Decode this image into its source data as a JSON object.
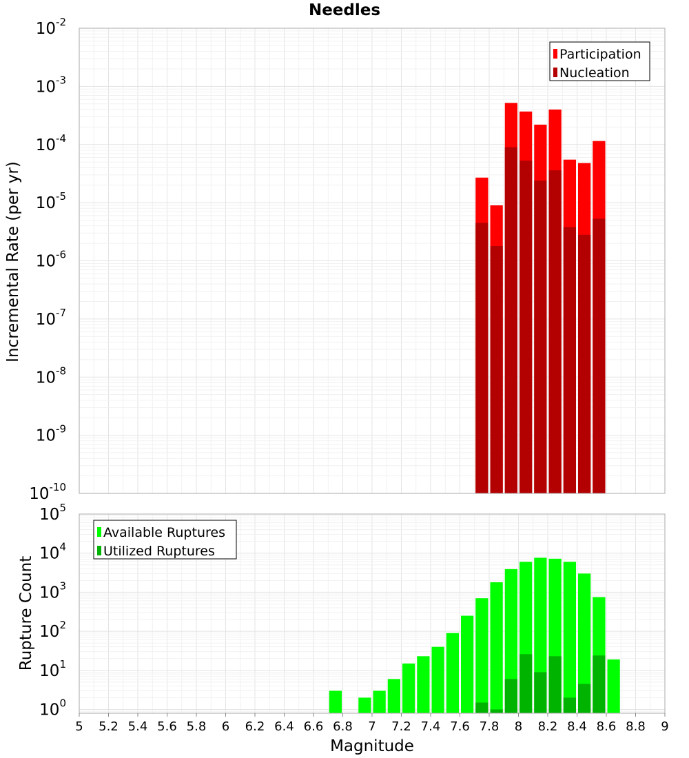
{
  "title": "Needles",
  "colors": {
    "participation": "#ff0000",
    "nucleation": "#b30000",
    "available": "#00ff00",
    "utilized": "#00b300"
  },
  "chart_data": [
    {
      "type": "bar",
      "scale": "log",
      "ylabel": "Incremental Rate (per yr)",
      "ylim": [
        1e-10,
        0.01
      ],
      "y_ticks": [
        {
          "base": "10",
          "exp": "-2"
        },
        {
          "base": "10",
          "exp": "-3"
        },
        {
          "base": "10",
          "exp": "-4"
        },
        {
          "base": "10",
          "exp": "-5"
        },
        {
          "base": "10",
          "exp": "-6"
        },
        {
          "base": "10",
          "exp": "-7"
        },
        {
          "base": "10",
          "exp": "-8"
        },
        {
          "base": "10",
          "exp": "-9"
        },
        {
          "base": "10",
          "exp": "-10"
        }
      ],
      "legend": {
        "position": "top-right",
        "entries": [
          "Participation",
          "Nucleation"
        ]
      },
      "series": [
        {
          "name": "Participation",
          "x": [
            7.75,
            7.85,
            7.95,
            8.05,
            8.15,
            8.25,
            8.35,
            8.45,
            8.55
          ],
          "values": [
            2.7e-05,
            9e-06,
            0.00052,
            0.00037,
            0.00022,
            0.0004,
            5.5e-05,
            4.8e-05,
            0.000115
          ]
        },
        {
          "name": "Nucleation",
          "x": [
            7.75,
            7.85,
            7.95,
            8.05,
            8.15,
            8.25,
            8.35,
            8.45,
            8.55
          ],
          "values": [
            4.5e-06,
            1.8e-06,
            9e-05,
            5.3e-05,
            2.4e-05,
            3.6e-05,
            3.8e-06,
            2.8e-06,
            5.3e-06
          ]
        }
      ]
    },
    {
      "type": "bar",
      "scale": "log",
      "ylabel": "Rupture Count",
      "xlabel": "Magnitude",
      "ylim": [
        0.8,
        100000.0
      ],
      "y_ticks": [
        {
          "base": "10",
          "exp": "5"
        },
        {
          "base": "10",
          "exp": "4"
        },
        {
          "base": "10",
          "exp": "3"
        },
        {
          "base": "10",
          "exp": "2"
        },
        {
          "base": "10",
          "exp": "1"
        },
        {
          "base": "10",
          "exp": "0"
        }
      ],
      "xlim": [
        5,
        9
      ],
      "x_ticks": [
        "5",
        "5.2",
        "5.4",
        "5.6",
        "5.8",
        "6",
        "6.2",
        "6.4",
        "6.6",
        "6.8",
        "7",
        "7.2",
        "7.4",
        "7.6",
        "7.8",
        "8",
        "8.2",
        "8.4",
        "8.6",
        "8.8",
        "9"
      ],
      "legend": {
        "position": "top-left",
        "entries": [
          "Available Ruptures",
          "Utilized Ruptures"
        ]
      },
      "series": [
        {
          "name": "Available Ruptures",
          "x": [
            6.75,
            6.95,
            7.05,
            7.15,
            7.25,
            7.35,
            7.45,
            7.55,
            7.65,
            7.75,
            7.85,
            7.95,
            8.05,
            8.15,
            8.25,
            8.35,
            8.45,
            8.55,
            8.65
          ],
          "values": [
            3,
            2,
            3,
            6,
            15,
            23,
            40,
            90,
            250,
            700,
            1800,
            3900,
            6000,
            7600,
            7200,
            6000,
            3000,
            750,
            19
          ]
        },
        {
          "name": "Utilized Ruptures",
          "x": [
            7.75,
            7.85,
            7.95,
            8.05,
            8.15,
            8.25,
            8.35,
            8.45,
            8.55
          ],
          "values": [
            1.5,
            1,
            6,
            26,
            9,
            23,
            2,
            4.5,
            24
          ]
        }
      ]
    }
  ]
}
